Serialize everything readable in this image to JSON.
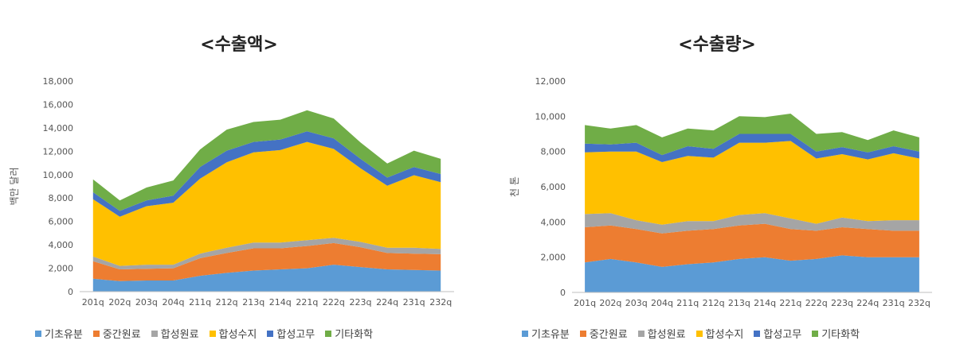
{
  "colors": {
    "기초유분": "#5b9bd5",
    "중간원료": "#ed7d31",
    "합성원료": "#a5a5a5",
    "합성수지": "#ffc000",
    "합성고무": "#4472c4",
    "기타화학": "#70ad47"
  },
  "legend": [
    "기초유분",
    "중간원료",
    "합성원료",
    "합성수지",
    "합성고무",
    "기타화학"
  ],
  "chart_data": [
    {
      "type": "area",
      "stacked": true,
      "title": "<수출액>",
      "ylabel": "백만 달러",
      "xlabel": "",
      "ylim": [
        0,
        18000
      ],
      "yticks": [
        "0",
        "2,000",
        "4,000",
        "6,000",
        "8,000",
        "10,000",
        "12,000",
        "14,000",
        "16,000",
        "18,000"
      ],
      "grid": false,
      "legend_position": "bottom",
      "categories": [
        "201q",
        "202q",
        "203q",
        "204q",
        "211q",
        "212q",
        "213q",
        "214q",
        "221q",
        "222q",
        "223q",
        "224q",
        "231q",
        "232q"
      ],
      "series": [
        {
          "name": "기초유분",
          "values": [
            1100,
            900,
            950,
            950,
            1350,
            1600,
            1800,
            1900,
            2000,
            2300,
            2100,
            1900,
            1850,
            1800
          ]
        },
        {
          "name": "중간원료",
          "values": [
            1500,
            1000,
            1000,
            1050,
            1500,
            1700,
            1900,
            1800,
            1900,
            1850,
            1700,
            1400,
            1400,
            1400
          ]
        },
        {
          "name": "합성원료",
          "values": [
            400,
            300,
            350,
            300,
            400,
            450,
            500,
            500,
            500,
            450,
            450,
            450,
            500,
            450
          ]
        },
        {
          "name": "합성수지",
          "values": [
            4900,
            4200,
            5000,
            5300,
            6400,
            7300,
            7700,
            7900,
            8400,
            7600,
            6300,
            5300,
            6200,
            5700
          ]
        },
        {
          "name": "합성고무",
          "values": [
            600,
            500,
            500,
            600,
            1000,
            1000,
            900,
            900,
            900,
            900,
            800,
            700,
            700,
            700
          ]
        },
        {
          "name": "기타화학",
          "values": [
            1100,
            900,
            1100,
            1300,
            1500,
            1800,
            1700,
            1700,
            1800,
            1700,
            1400,
            1200,
            1400,
            1300
          ]
        }
      ]
    },
    {
      "type": "area",
      "stacked": true,
      "title": "<수출량>",
      "ylabel": "천 톤",
      "xlabel": "",
      "ylim": [
        0,
        12000
      ],
      "yticks": [
        "0",
        "2,000",
        "4,000",
        "6,000",
        "8,000",
        "10,000",
        "12,000"
      ],
      "grid": false,
      "legend_position": "bottom",
      "categories": [
        "201q",
        "202q",
        "203q",
        "204q",
        "211q",
        "212q",
        "213q",
        "214q",
        "221q",
        "222q",
        "223q",
        "224q",
        "231q",
        "232q"
      ],
      "series": [
        {
          "name": "기초유분",
          "values": [
            1700,
            1900,
            1700,
            1450,
            1600,
            1700,
            1900,
            2000,
            1800,
            1900,
            2100,
            2000,
            2000,
            2000
          ]
        },
        {
          "name": "중간원료",
          "values": [
            2000,
            1900,
            1900,
            1900,
            1900,
            1900,
            1900,
            1900,
            1800,
            1600,
            1600,
            1600,
            1500,
            1500
          ]
        },
        {
          "name": "합성원료",
          "values": [
            750,
            700,
            500,
            500,
            550,
            450,
            600,
            600,
            600,
            400,
            550,
            450,
            600,
            600
          ]
        },
        {
          "name": "합성수지",
          "values": [
            3500,
            3500,
            3900,
            3550,
            3700,
            3600,
            4100,
            4000,
            4400,
            3700,
            3600,
            3500,
            3800,
            3500
          ]
        },
        {
          "name": "합성고무",
          "values": [
            500,
            400,
            500,
            400,
            550,
            500,
            500,
            500,
            400,
            400,
            400,
            400,
            400,
            400
          ]
        },
        {
          "name": "기타화학",
          "values": [
            1050,
            900,
            1000,
            1000,
            1000,
            1050,
            1000,
            950,
            1150,
            1000,
            850,
            700,
            900,
            800
          ]
        }
      ]
    }
  ]
}
